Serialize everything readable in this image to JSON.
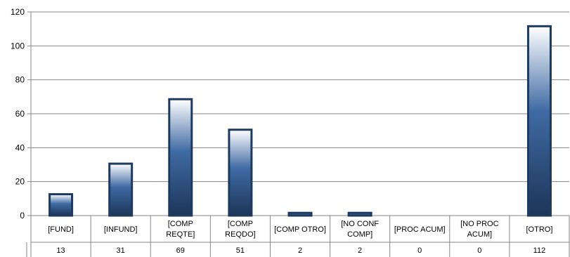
{
  "chart_data": {
    "type": "bar",
    "categories": [
      [
        "[FUND]"
      ],
      [
        "[INFUND]"
      ],
      [
        "[COMP",
        "REQTE]"
      ],
      [
        "[COMP",
        "REQDO]"
      ],
      [
        "[COMP OTRO]"
      ],
      [
        "[NO CONF",
        "COMP]"
      ],
      [
        "[PROC ACUM]"
      ],
      [
        "[NO PROC",
        "ACUM]"
      ],
      [
        "[OTRO]"
      ]
    ],
    "values": [
      13,
      31,
      69,
      51,
      2,
      2,
      0,
      0,
      112
    ],
    "value_labels": [
      "13",
      "31",
      "69",
      "51",
      "2",
      "2",
      "0",
      "0",
      "112"
    ],
    "yticks": [
      "0",
      "20",
      "40",
      "60",
      "80",
      "100",
      "120"
    ],
    "ylim": [
      0,
      120
    ],
    "grid": true,
    "data_table": true,
    "title": "",
    "xlabel": "",
    "ylabel": ""
  },
  "colors": {
    "bar_top": "#ffffff",
    "bar_mid": "#3f6aa3",
    "bar_bottom": "#1d3558",
    "bar_outline": "#1f3a5f",
    "grid": "#868686",
    "axis": "#868686"
  }
}
